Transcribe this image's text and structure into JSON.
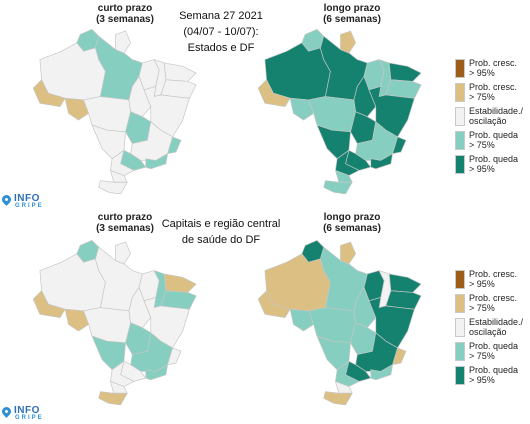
{
  "colors": {
    "prob_cresc_95": "#9c5c1a",
    "prob_cresc_75": "#dcc083",
    "estabilidade": "#f2f2f2",
    "prob_queda_75": "#86cfc0",
    "prob_queda_95": "#15826f",
    "border": "#c6c6c6"
  },
  "legend": [
    {
      "key": "prob_cresc_95",
      "line1": "Prob. cresc.",
      "line2": "> 95%"
    },
    {
      "key": "prob_cresc_75",
      "line1": "Prob. cresc.",
      "line2": "> 75%"
    },
    {
      "key": "estabilidade",
      "line1": "Estabilidade./",
      "line2": "oscilação"
    },
    {
      "key": "prob_queda_75",
      "line1": "Prob. queda",
      "line2": "> 75%"
    },
    {
      "key": "prob_queda_95",
      "line1": "Prob. queda",
      "line2": "> 95%"
    }
  ],
  "logo": {
    "word": "INFO",
    "sub": "GRIPE",
    "pin_icon": "location-pin-icon"
  },
  "panels": [
    {
      "title_lines": [
        "Semana 27 2021",
        "(04/07 - 10/07):",
        "Estados e DF"
      ],
      "short": {
        "label": "curto prazo",
        "sub": "(3 semanas)"
      },
      "long": {
        "label": "longo prazo",
        "sub": "(6 semanas)"
      },
      "short_regions": {
        "AC": "prob_cresc_75",
        "AM": "estabilidade",
        "RR": "prob_queda_75",
        "AP": "estabilidade",
        "PA": "prob_queda_75",
        "RO": "prob_cresc_75",
        "MT": "estabilidade",
        "TO": "estabilidade",
        "MA": "estabilidade",
        "PI": "estabilidade",
        "NE_N": "estabilidade",
        "NE_S": "estabilidade",
        "BA": "estabilidade",
        "GO": "prob_queda_75",
        "MS": "estabilidade",
        "MG": "estabilidade",
        "SP": "prob_queda_75",
        "RJ": "prob_queda_75",
        "ES": "prob_queda_75",
        "PR": "estabilidade",
        "SC": "estabilidade",
        "RS": "estabilidade"
      },
      "long_regions": {
        "AC": "prob_cresc_75",
        "AM": "prob_queda_95",
        "RR": "prob_queda_75",
        "AP": "prob_cresc_75",
        "PA": "prob_queda_95",
        "RO": "prob_queda_75",
        "MT": "prob_queda_75",
        "TO": "prob_queda_95",
        "MA": "prob_queda_75",
        "PI": "prob_queda_75",
        "NE_N": "prob_queda_95",
        "NE_S": "prob_queda_75",
        "BA": "prob_queda_95",
        "GO": "prob_queda_95",
        "MS": "prob_queda_95",
        "MG": "prob_queda_75",
        "SP": "prob_queda_95",
        "RJ": "prob_queda_95",
        "ES": "prob_queda_95",
        "PR": "prob_queda_95",
        "SC": "prob_queda_75",
        "RS": "prob_queda_75"
      }
    },
    {
      "title_lines": [
        "Capitais e região central",
        "de saúde do DF"
      ],
      "short": {
        "label": "curto prazo",
        "sub": "(3 semanas)"
      },
      "long": {
        "label": "longo prazo",
        "sub": "(6 semanas)"
      },
      "short_regions": {
        "AC": "prob_cresc_75",
        "AM": "estabilidade",
        "RR": "prob_queda_75",
        "AP": "estabilidade",
        "PA": "estabilidade",
        "RO": "prob_cresc_75",
        "MT": "estabilidade",
        "TO": "estabilidade",
        "MA": "estabilidade",
        "PI": "prob_queda_75",
        "NE_N": "prob_cresc_75",
        "NE_S": "prob_queda_75",
        "BA": "estabilidade",
        "GO": "prob_queda_75",
        "MS": "prob_queda_75",
        "MG": "prob_queda_75",
        "SP": "estabilidade",
        "RJ": "prob_queda_75",
        "ES": "estabilidade",
        "PR": "estabilidade",
        "SC": "estabilidade",
        "RS": "prob_cresc_75"
      },
      "long_regions": {
        "AC": "prob_cresc_75",
        "AM": "prob_cresc_75",
        "RR": "prob_queda_95",
        "AP": "prob_cresc_75",
        "PA": "prob_queda_75",
        "RO": "prob_queda_75",
        "MT": "prob_queda_75",
        "TO": "prob_queda_75",
        "MA": "prob_queda_95",
        "PI": "estabilidade",
        "NE_N": "prob_queda_95",
        "NE_S": "prob_queda_95",
        "BA": "prob_queda_95",
        "GO": "prob_queda_75",
        "MS": "prob_queda_75",
        "MG": "prob_queda_95",
        "SP": "prob_queda_95",
        "RJ": "prob_queda_75",
        "ES": "prob_cresc_75",
        "PR": "prob_queda_75",
        "SC": "estabilidade",
        "RS": "prob_cresc_75"
      }
    }
  ]
}
